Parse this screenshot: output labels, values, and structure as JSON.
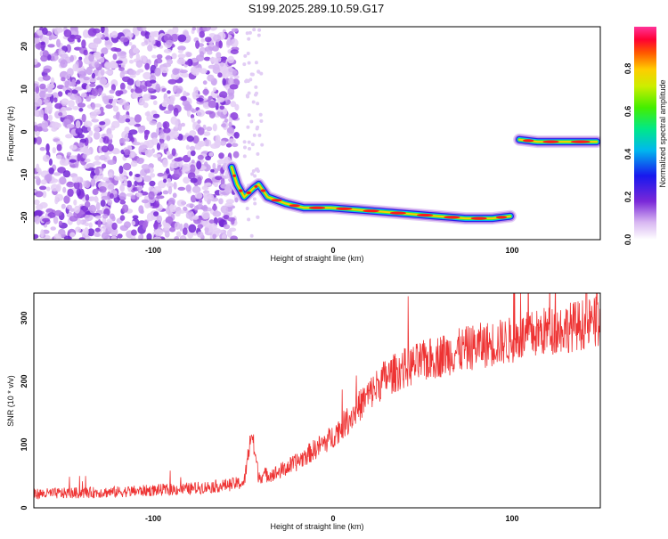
{
  "title": "S199.2025.289.10.59.G17",
  "top_panel": {
    "xlabel": "Height of straight line (km)",
    "ylabel": "Frequency (Hz)",
    "xticks": [
      "-100",
      "0",
      "100"
    ],
    "yticks": [
      "20",
      "10",
      "0",
      "-10",
      "-20"
    ],
    "colorbar": {
      "label": "Normalized spectral amplitude",
      "ticks": [
        "0.0",
        "0.2",
        "0.4",
        "0.6",
        "0.8"
      ]
    }
  },
  "bottom_panel": {
    "xlabel": "Height of straight line (km)",
    "ylabel": "SNR (10 * v/v)",
    "xticks": [
      "-100",
      "0",
      "100"
    ],
    "yticks": [
      "0",
      "100",
      "200",
      "300"
    ]
  },
  "chart_data": [
    {
      "type": "heatmap",
      "xlabel": "Height of straight line (km)",
      "ylabel": "Frequency (Hz)",
      "xlim": [
        -165,
        150
      ],
      "ylim": [
        -25,
        25
      ],
      "zlim": [
        0,
        1
      ],
      "colorbar_label": "Normalized spectral amplitude",
      "colormap": "rainbow",
      "ridge": [
        {
          "x": -55,
          "y": -8
        },
        {
          "x": -52,
          "y": -12
        },
        {
          "x": -48,
          "y": -15
        },
        {
          "x": -43,
          "y": -13
        },
        {
          "x": -40,
          "y": -12
        },
        {
          "x": -35,
          "y": -15
        },
        {
          "x": -25,
          "y": -16.5
        },
        {
          "x": -15,
          "y": -17.5
        },
        {
          "x": 0,
          "y": -17.5
        },
        {
          "x": 15,
          "y": -18
        },
        {
          "x": 30,
          "y": -18.5
        },
        {
          "x": 45,
          "y": -19
        },
        {
          "x": 60,
          "y": -19.5
        },
        {
          "x": 75,
          "y": -20
        },
        {
          "x": 90,
          "y": -20
        },
        {
          "x": 100,
          "y": -19.5
        }
      ],
      "upper_ridge": [
        {
          "x": 105,
          "y": -1.5
        },
        {
          "x": 115,
          "y": -2
        },
        {
          "x": 130,
          "y": -2
        },
        {
          "x": 148,
          "y": -2
        }
      ]
    },
    {
      "type": "line",
      "xlabel": "Height of straight line (km)",
      "ylabel": "SNR (10 * v/v)",
      "xlim": [
        -165,
        150
      ],
      "ylim": [
        0,
        340
      ],
      "color": "#ee3333",
      "trend": [
        {
          "x": -165,
          "y": 22
        },
        {
          "x": -120,
          "y": 25
        },
        {
          "x": -80,
          "y": 30
        },
        {
          "x": -60,
          "y": 35
        },
        {
          "x": -48,
          "y": 40
        },
        {
          "x": -44,
          "y": 120
        },
        {
          "x": -40,
          "y": 50
        },
        {
          "x": -30,
          "y": 55
        },
        {
          "x": -20,
          "y": 70
        },
        {
          "x": -10,
          "y": 90
        },
        {
          "x": 0,
          "y": 110
        },
        {
          "x": 10,
          "y": 140
        },
        {
          "x": 20,
          "y": 175
        },
        {
          "x": 30,
          "y": 205
        },
        {
          "x": 40,
          "y": 220
        },
        {
          "x": 60,
          "y": 240
        },
        {
          "x": 80,
          "y": 255
        },
        {
          "x": 100,
          "y": 265
        },
        {
          "x": 120,
          "y": 280
        },
        {
          "x": 150,
          "y": 295
        }
      ]
    }
  ]
}
